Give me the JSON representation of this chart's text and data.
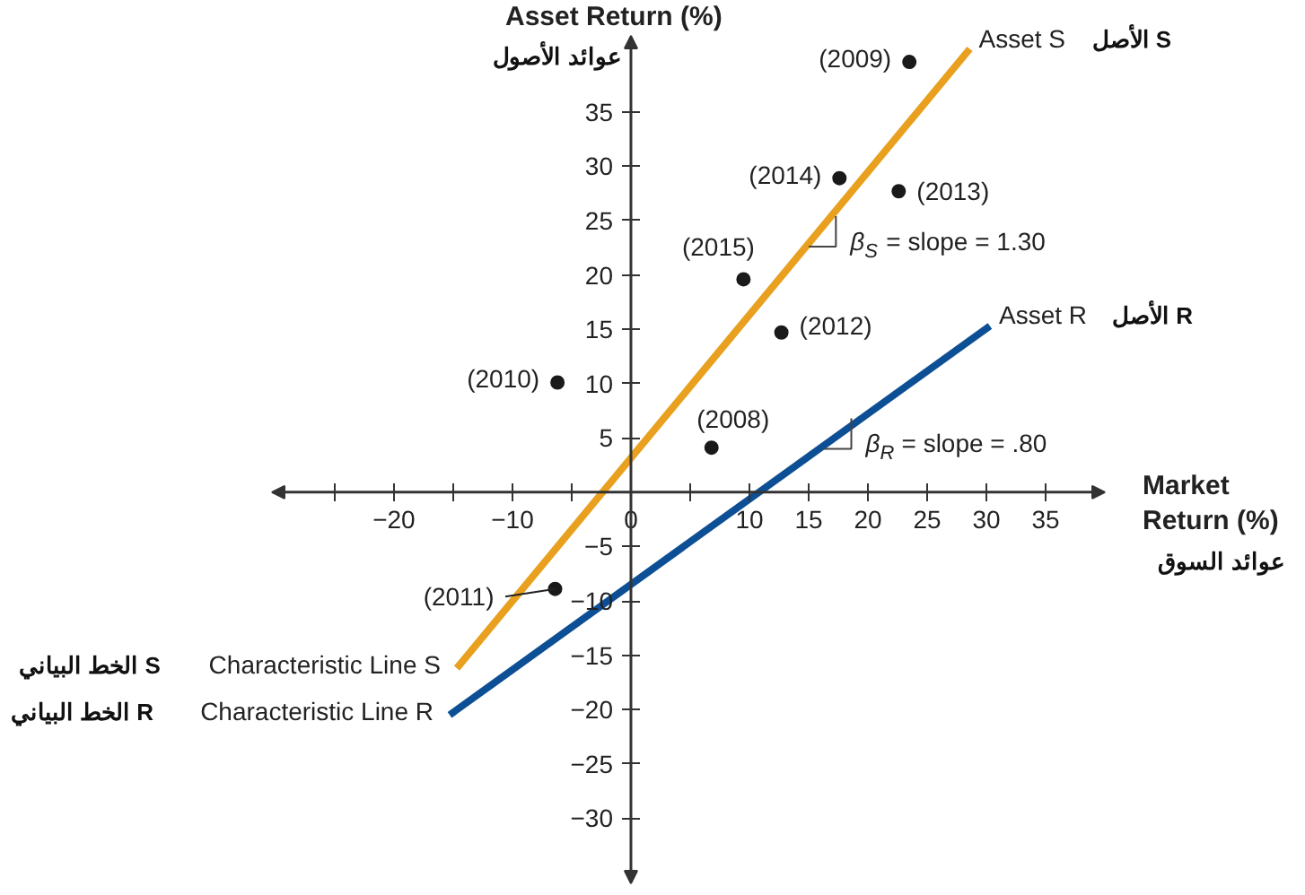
{
  "chart_data": {
    "type": "scatter",
    "ylabel": "Asset Return (%)",
    "xlabel": "Market Return (%)",
    "xlim": [
      -30.3,
      40
    ],
    "ylim": [
      -36,
      42
    ],
    "xticks": [
      {
        "value": -25,
        "label": null
      },
      -20,
      {
        "value": -15,
        "label": null
      },
      -10,
      {
        "value": -5,
        "label": null
      },
      0,
      {
        "value": 5,
        "label": null
      },
      10,
      15,
      20,
      25,
      30,
      35
    ],
    "yticks": [
      -30,
      -25,
      -20,
      -15,
      -10,
      -5,
      {
        "value": 0,
        "label": null
      },
      5,
      10,
      15,
      20,
      25,
      30,
      35
    ],
    "grid": false,
    "series": [
      {
        "marker": "circle",
        "color": "#1a1a1a",
        "x": [
          23.5,
          17.6,
          22.6,
          9.5,
          12.7,
          -6.2,
          6.8,
          -6.4
        ],
        "values": [
          39.6,
          28.9,
          27.7,
          19.6,
          14.7,
          10.1,
          4.1,
          -8.9
        ]
      },
      {
        "type": "line",
        "name": "Asset S",
        "color": "#e8a01e",
        "x": [
          -14.7,
          28.6
        ],
        "values": [
          -16.2,
          40.8
        ]
      },
      {
        "type": "line",
        "name": "Asset R",
        "color": "#0d4f94",
        "x": [
          -15.3,
          30.3
        ],
        "values": [
          -20.5,
          15.3
        ]
      }
    ],
    "annotations": [
      {
        "text": "(2009)",
        "x": 23.5,
        "y": 39.6
      },
      {
        "text": "(2014)",
        "x": 17.6,
        "y": 28.9
      },
      {
        "text": "(2013)",
        "x": 22.6,
        "y": 27.7
      },
      {
        "text": "(2015)",
        "x": 9.5,
        "y": 19.6
      },
      {
        "text": "(2012)",
        "x": 12.7,
        "y": 14.7
      },
      {
        "text": "(2010)",
        "x": -6.2,
        "y": 10.1
      },
      {
        "text": "(2008)",
        "x": 6.8,
        "y": 4.1
      },
      {
        "text": "(2011)",
        "x": -6.4,
        "y": -8.9
      },
      "الأصل S",
      "الأصل R",
      {
        "text": "β$_{S}$ = slope = 1.30",
        "x": 17.3,
        "y": 25.4
      },
      {
        "text": "β$_{R}$ = slope = .80",
        "x": 18.6,
        "y": 6.8
      },
      {
        "text": "Characteristic Line S",
        "x": -14.7,
        "y": -16.2
      },
      "الخط البياني S",
      {
        "text": "Characteristic Line R",
        "x": -15.3,
        "y": -20.5
      },
      "الخط البياني R",
      "عوائد الأصول",
      "عوائد السوق"
    ]
  }
}
